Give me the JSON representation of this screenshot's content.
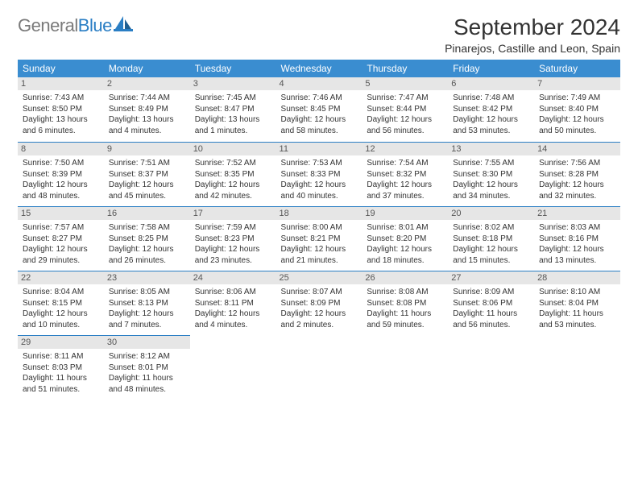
{
  "logo": {
    "text1": "General",
    "text2": "Blue"
  },
  "title": "September 2024",
  "location": "Pinarejos, Castille and Leon, Spain",
  "colors": {
    "header_bg": "#3a8dd0",
    "header_text": "#ffffff",
    "daynum_bg": "#e6e6e6",
    "divider": "#2a7ec4",
    "logo_gray": "#7a7a7a",
    "logo_blue": "#2a7ec4",
    "text": "#333333",
    "body_bg": "#ffffff"
  },
  "weekdays": [
    "Sunday",
    "Monday",
    "Tuesday",
    "Wednesday",
    "Thursday",
    "Friday",
    "Saturday"
  ],
  "days": [
    {
      "n": "1",
      "sunrise": "Sunrise: 7:43 AM",
      "sunset": "Sunset: 8:50 PM",
      "day1": "Daylight: 13 hours",
      "day2": "and 6 minutes."
    },
    {
      "n": "2",
      "sunrise": "Sunrise: 7:44 AM",
      "sunset": "Sunset: 8:49 PM",
      "day1": "Daylight: 13 hours",
      "day2": "and 4 minutes."
    },
    {
      "n": "3",
      "sunrise": "Sunrise: 7:45 AM",
      "sunset": "Sunset: 8:47 PM",
      "day1": "Daylight: 13 hours",
      "day2": "and 1 minutes."
    },
    {
      "n": "4",
      "sunrise": "Sunrise: 7:46 AM",
      "sunset": "Sunset: 8:45 PM",
      "day1": "Daylight: 12 hours",
      "day2": "and 58 minutes."
    },
    {
      "n": "5",
      "sunrise": "Sunrise: 7:47 AM",
      "sunset": "Sunset: 8:44 PM",
      "day1": "Daylight: 12 hours",
      "day2": "and 56 minutes."
    },
    {
      "n": "6",
      "sunrise": "Sunrise: 7:48 AM",
      "sunset": "Sunset: 8:42 PM",
      "day1": "Daylight: 12 hours",
      "day2": "and 53 minutes."
    },
    {
      "n": "7",
      "sunrise": "Sunrise: 7:49 AM",
      "sunset": "Sunset: 8:40 PM",
      "day1": "Daylight: 12 hours",
      "day2": "and 50 minutes."
    },
    {
      "n": "8",
      "sunrise": "Sunrise: 7:50 AM",
      "sunset": "Sunset: 8:39 PM",
      "day1": "Daylight: 12 hours",
      "day2": "and 48 minutes."
    },
    {
      "n": "9",
      "sunrise": "Sunrise: 7:51 AM",
      "sunset": "Sunset: 8:37 PM",
      "day1": "Daylight: 12 hours",
      "day2": "and 45 minutes."
    },
    {
      "n": "10",
      "sunrise": "Sunrise: 7:52 AM",
      "sunset": "Sunset: 8:35 PM",
      "day1": "Daylight: 12 hours",
      "day2": "and 42 minutes."
    },
    {
      "n": "11",
      "sunrise": "Sunrise: 7:53 AM",
      "sunset": "Sunset: 8:33 PM",
      "day1": "Daylight: 12 hours",
      "day2": "and 40 minutes."
    },
    {
      "n": "12",
      "sunrise": "Sunrise: 7:54 AM",
      "sunset": "Sunset: 8:32 PM",
      "day1": "Daylight: 12 hours",
      "day2": "and 37 minutes."
    },
    {
      "n": "13",
      "sunrise": "Sunrise: 7:55 AM",
      "sunset": "Sunset: 8:30 PM",
      "day1": "Daylight: 12 hours",
      "day2": "and 34 minutes."
    },
    {
      "n": "14",
      "sunrise": "Sunrise: 7:56 AM",
      "sunset": "Sunset: 8:28 PM",
      "day1": "Daylight: 12 hours",
      "day2": "and 32 minutes."
    },
    {
      "n": "15",
      "sunrise": "Sunrise: 7:57 AM",
      "sunset": "Sunset: 8:27 PM",
      "day1": "Daylight: 12 hours",
      "day2": "and 29 minutes."
    },
    {
      "n": "16",
      "sunrise": "Sunrise: 7:58 AM",
      "sunset": "Sunset: 8:25 PM",
      "day1": "Daylight: 12 hours",
      "day2": "and 26 minutes."
    },
    {
      "n": "17",
      "sunrise": "Sunrise: 7:59 AM",
      "sunset": "Sunset: 8:23 PM",
      "day1": "Daylight: 12 hours",
      "day2": "and 23 minutes."
    },
    {
      "n": "18",
      "sunrise": "Sunrise: 8:00 AM",
      "sunset": "Sunset: 8:21 PM",
      "day1": "Daylight: 12 hours",
      "day2": "and 21 minutes."
    },
    {
      "n": "19",
      "sunrise": "Sunrise: 8:01 AM",
      "sunset": "Sunset: 8:20 PM",
      "day1": "Daylight: 12 hours",
      "day2": "and 18 minutes."
    },
    {
      "n": "20",
      "sunrise": "Sunrise: 8:02 AM",
      "sunset": "Sunset: 8:18 PM",
      "day1": "Daylight: 12 hours",
      "day2": "and 15 minutes."
    },
    {
      "n": "21",
      "sunrise": "Sunrise: 8:03 AM",
      "sunset": "Sunset: 8:16 PM",
      "day1": "Daylight: 12 hours",
      "day2": "and 13 minutes."
    },
    {
      "n": "22",
      "sunrise": "Sunrise: 8:04 AM",
      "sunset": "Sunset: 8:15 PM",
      "day1": "Daylight: 12 hours",
      "day2": "and 10 minutes."
    },
    {
      "n": "23",
      "sunrise": "Sunrise: 8:05 AM",
      "sunset": "Sunset: 8:13 PM",
      "day1": "Daylight: 12 hours",
      "day2": "and 7 minutes."
    },
    {
      "n": "24",
      "sunrise": "Sunrise: 8:06 AM",
      "sunset": "Sunset: 8:11 PM",
      "day1": "Daylight: 12 hours",
      "day2": "and 4 minutes."
    },
    {
      "n": "25",
      "sunrise": "Sunrise: 8:07 AM",
      "sunset": "Sunset: 8:09 PM",
      "day1": "Daylight: 12 hours",
      "day2": "and 2 minutes."
    },
    {
      "n": "26",
      "sunrise": "Sunrise: 8:08 AM",
      "sunset": "Sunset: 8:08 PM",
      "day1": "Daylight: 11 hours",
      "day2": "and 59 minutes."
    },
    {
      "n": "27",
      "sunrise": "Sunrise: 8:09 AM",
      "sunset": "Sunset: 8:06 PM",
      "day1": "Daylight: 11 hours",
      "day2": "and 56 minutes."
    },
    {
      "n": "28",
      "sunrise": "Sunrise: 8:10 AM",
      "sunset": "Sunset: 8:04 PM",
      "day1": "Daylight: 11 hours",
      "day2": "and 53 minutes."
    },
    {
      "n": "29",
      "sunrise": "Sunrise: 8:11 AM",
      "sunset": "Sunset: 8:03 PM",
      "day1": "Daylight: 11 hours",
      "day2": "and 51 minutes."
    },
    {
      "n": "30",
      "sunrise": "Sunrise: 8:12 AM",
      "sunset": "Sunset: 8:01 PM",
      "day1": "Daylight: 11 hours",
      "day2": "and 48 minutes."
    }
  ]
}
